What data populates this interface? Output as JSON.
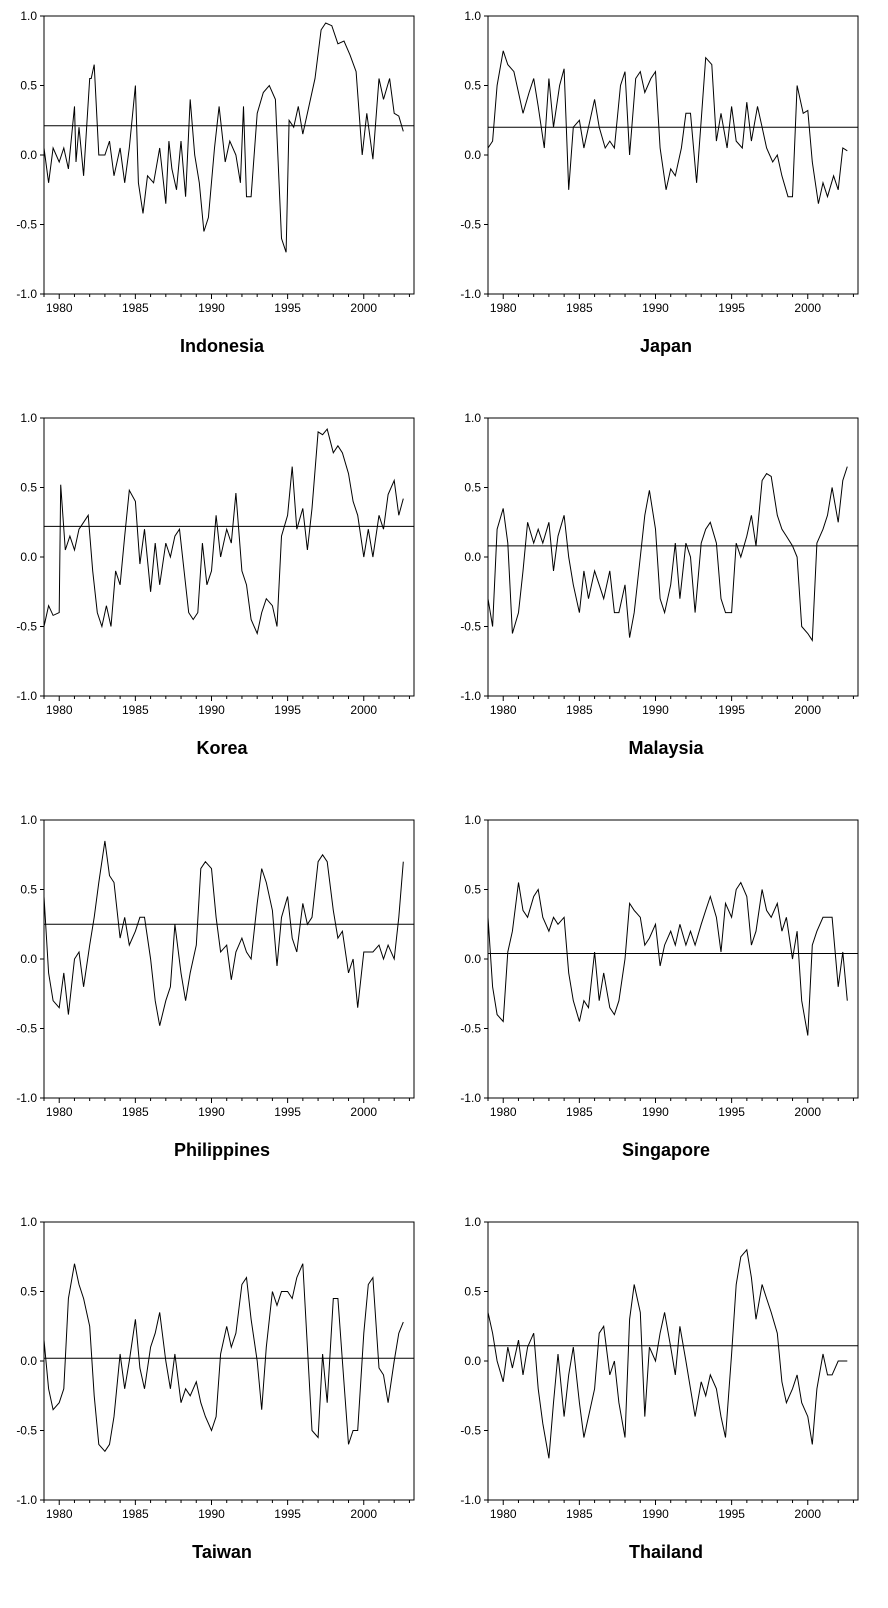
{
  "figure": {
    "xticks": [
      1980,
      1985,
      1990,
      1995,
      2000
    ],
    "yticks": [
      -1.0,
      -0.5,
      0.0,
      0.5,
      1.0
    ],
    "ytick_labels": [
      "-1.0",
      "-0.5",
      "0.0",
      "0.5",
      "1.0"
    ],
    "line_color": "#000000"
  },
  "chart_data": [
    {
      "type": "line",
      "title": "Indonesia",
      "xlim": [
        1979,
        2003.3
      ],
      "ylim": [
        -1.0,
        1.0
      ],
      "reference_line": 0.21,
      "x": [
        1979.0,
        1979.3,
        1979.6,
        1980.0,
        1980.3,
        1980.6,
        1981.0,
        1981.1,
        1981.3,
        1981.6,
        1982.0,
        1982.1,
        1982.3,
        1982.6,
        1983.0,
        1983.3,
        1983.6,
        1984.0,
        1984.3,
        1984.6,
        1985.0,
        1985.2,
        1985.5,
        1985.8,
        1986.2,
        1986.6,
        1987.0,
        1987.2,
        1987.4,
        1987.7,
        1988.0,
        1988.3,
        1988.6,
        1988.9,
        1989.2,
        1989.5,
        1989.8,
        1990.2,
        1990.5,
        1990.9,
        1991.2,
        1991.6,
        1991.9,
        1992.1,
        1992.3,
        1992.6,
        1993.0,
        1993.4,
        1993.8,
        1994.2,
        1994.6,
        1994.9,
        1995.1,
        1995.4,
        1995.7,
        1996.0,
        1996.4,
        1996.8,
        1997.2,
        1997.5,
        1997.9,
        1998.3,
        1998.7,
        1999.1,
        1999.5,
        1999.9,
        2000.2,
        2000.6,
        2001.0,
        2001.3,
        2001.7,
        2002.0,
        2002.3,
        2002.6
      ],
      "y": [
        0.05,
        -0.2,
        0.05,
        -0.05,
        0.05,
        -0.1,
        0.35,
        -0.05,
        0.2,
        -0.15,
        0.55,
        0.55,
        0.65,
        0.0,
        0.0,
        0.1,
        -0.15,
        0.05,
        -0.2,
        0.05,
        0.5,
        -0.2,
        -0.42,
        -0.15,
        -0.2,
        0.05,
        -0.35,
        0.1,
        -0.1,
        -0.25,
        0.1,
        -0.3,
        0.4,
        0.0,
        -0.2,
        -0.55,
        -0.45,
        0.05,
        0.35,
        -0.05,
        0.1,
        0.0,
        -0.2,
        0.35,
        -0.3,
        -0.3,
        0.3,
        0.45,
        0.5,
        0.4,
        -0.6,
        -0.7,
        0.25,
        0.2,
        0.35,
        0.15,
        0.35,
        0.55,
        0.9,
        0.95,
        0.93,
        0.8,
        0.82,
        0.72,
        0.6,
        0.0,
        0.3,
        -0.03,
        0.55,
        0.4,
        0.55,
        0.3,
        0.28,
        0.17
      ]
    },
    {
      "type": "line",
      "title": "Japan",
      "xlim": [
        1979,
        2003.3
      ],
      "ylim": [
        -1.0,
        1.0
      ],
      "reference_line": 0.2,
      "x": [
        1979.0,
        1979.3,
        1979.6,
        1980.0,
        1980.3,
        1980.7,
        1981.0,
        1981.3,
        1981.7,
        1982.0,
        1982.3,
        1982.7,
        1983.0,
        1983.3,
        1983.7,
        1984.0,
        1984.3,
        1984.6,
        1985.0,
        1985.3,
        1985.7,
        1986.0,
        1986.3,
        1986.7,
        1987.0,
        1987.3,
        1987.7,
        1988.0,
        1988.3,
        1988.7,
        1989.0,
        1989.3,
        1989.7,
        1990.0,
        1990.3,
        1990.7,
        1991.0,
        1991.3,
        1991.7,
        1992.0,
        1992.3,
        1992.7,
        1993.0,
        1993.3,
        1993.7,
        1994.0,
        1994.3,
        1994.7,
        1995.0,
        1995.3,
        1995.7,
        1996.0,
        1996.3,
        1996.7,
        1997.0,
        1997.3,
        1997.7,
        1998.0,
        1998.3,
        1998.7,
        1999.0,
        1999.3,
        1999.7,
        2000.0,
        2000.3,
        2000.7,
        2001.0,
        2001.3,
        2001.7,
        2002.0,
        2002.3,
        2002.6
      ],
      "y": [
        0.05,
        0.1,
        0.5,
        0.75,
        0.65,
        0.6,
        0.45,
        0.3,
        0.45,
        0.55,
        0.35,
        0.05,
        0.55,
        0.2,
        0.5,
        0.62,
        -0.25,
        0.2,
        0.25,
        0.05,
        0.25,
        0.4,
        0.2,
        0.05,
        0.1,
        0.05,
        0.5,
        0.6,
        0.0,
        0.55,
        0.6,
        0.45,
        0.55,
        0.6,
        0.05,
        -0.25,
        -0.1,
        -0.15,
        0.05,
        0.3,
        0.3,
        -0.2,
        0.25,
        0.7,
        0.65,
        0.1,
        0.3,
        0.05,
        0.35,
        0.1,
        0.05,
        0.38,
        0.1,
        0.35,
        0.2,
        0.05,
        -0.05,
        0.0,
        -0.15,
        -0.3,
        -0.3,
        0.5,
        0.3,
        0.32,
        -0.05,
        -0.35,
        -0.2,
        -0.3,
        -0.15,
        -0.25,
        0.05,
        0.03
      ]
    },
    {
      "type": "line",
      "title": "Korea",
      "xlim": [
        1979,
        2003.3
      ],
      "ylim": [
        -1.0,
        1.0
      ],
      "reference_line": 0.22,
      "x": [
        1979.0,
        1979.3,
        1979.6,
        1980.0,
        1980.1,
        1980.4,
        1980.7,
        1981.0,
        1981.3,
        1981.6,
        1981.9,
        1982.2,
        1982.5,
        1982.8,
        1983.1,
        1983.4,
        1983.7,
        1984.0,
        1984.3,
        1984.6,
        1985.0,
        1985.3,
        1985.6,
        1986.0,
        1986.3,
        1986.6,
        1987.0,
        1987.3,
        1987.6,
        1987.9,
        1988.2,
        1988.5,
        1988.8,
        1989.1,
        1989.4,
        1989.7,
        1990.0,
        1990.3,
        1990.6,
        1991.0,
        1991.3,
        1991.6,
        1992.0,
        1992.3,
        1992.6,
        1993.0,
        1993.3,
        1993.6,
        1994.0,
        1994.3,
        1994.6,
        1995.0,
        1995.3,
        1995.6,
        1996.0,
        1996.3,
        1996.6,
        1997.0,
        1997.3,
        1997.6,
        1998.0,
        1998.3,
        1998.6,
        1999.0,
        1999.3,
        1999.6,
        2000.0,
        2000.3,
        2000.6,
        2001.0,
        2001.3,
        2001.6,
        2002.0,
        2002.3,
        2002.6
      ],
      "y": [
        -0.5,
        -0.35,
        -0.42,
        -0.4,
        0.52,
        0.05,
        0.15,
        0.05,
        0.2,
        0.25,
        0.3,
        -0.1,
        -0.4,
        -0.5,
        -0.35,
        -0.5,
        -0.1,
        -0.2,
        0.15,
        0.48,
        0.4,
        -0.05,
        0.2,
        -0.25,
        0.1,
        -0.2,
        0.1,
        0.0,
        0.15,
        0.2,
        -0.1,
        -0.4,
        -0.45,
        -0.4,
        0.1,
        -0.2,
        -0.1,
        0.3,
        0.0,
        0.2,
        0.1,
        0.46,
        -0.1,
        -0.2,
        -0.45,
        -0.55,
        -0.4,
        -0.3,
        -0.35,
        -0.5,
        0.15,
        0.3,
        0.65,
        0.2,
        0.35,
        0.05,
        0.35,
        0.9,
        0.88,
        0.92,
        0.75,
        0.8,
        0.75,
        0.6,
        0.4,
        0.3,
        0.0,
        0.2,
        0.0,
        0.3,
        0.2,
        0.45,
        0.55,
        0.3,
        0.42
      ]
    },
    {
      "type": "line",
      "title": "Malaysia",
      "xlim": [
        1979,
        2003.3
      ],
      "ylim": [
        -1.0,
        1.0
      ],
      "reference_line": 0.08,
      "x": [
        1979.0,
        1979.3,
        1979.6,
        1980.0,
        1980.3,
        1980.6,
        1981.0,
        1981.3,
        1981.6,
        1982.0,
        1982.3,
        1982.6,
        1983.0,
        1983.3,
        1983.6,
        1984.0,
        1984.3,
        1984.6,
        1985.0,
        1985.3,
        1985.6,
        1986.0,
        1986.3,
        1986.6,
        1987.0,
        1987.3,
        1987.6,
        1988.0,
        1988.3,
        1988.6,
        1989.0,
        1989.3,
        1989.6,
        1990.0,
        1990.3,
        1990.6,
        1991.0,
        1991.3,
        1991.6,
        1992.0,
        1992.3,
        1992.6,
        1993.0,
        1993.3,
        1993.6,
        1994.0,
        1994.3,
        1994.6,
        1995.0,
        1995.3,
        1995.6,
        1996.0,
        1996.3,
        1996.6,
        1997.0,
        1997.3,
        1997.6,
        1998.0,
        1998.3,
        1998.6,
        1999.0,
        1999.3,
        1999.6,
        2000.0,
        2000.3,
        2000.6,
        2001.0,
        2001.3,
        2001.6,
        2002.0,
        2002.3,
        2002.6
      ],
      "y": [
        -0.3,
        -0.5,
        0.2,
        0.35,
        0.1,
        -0.55,
        -0.4,
        -0.1,
        0.25,
        0.1,
        0.2,
        0.1,
        0.25,
        -0.1,
        0.15,
        0.3,
        0.0,
        -0.2,
        -0.4,
        -0.1,
        -0.3,
        -0.1,
        -0.2,
        -0.3,
        -0.1,
        -0.4,
        -0.4,
        -0.2,
        -0.58,
        -0.4,
        0.0,
        0.3,
        0.48,
        0.2,
        -0.3,
        -0.4,
        -0.2,
        0.1,
        -0.3,
        0.1,
        0.0,
        -0.4,
        0.1,
        0.2,
        0.25,
        0.1,
        -0.3,
        -0.4,
        -0.4,
        0.1,
        0.0,
        0.15,
        0.3,
        0.08,
        0.55,
        0.6,
        0.58,
        0.3,
        0.2,
        0.15,
        0.08,
        0.0,
        -0.5,
        -0.55,
        -0.6,
        0.1,
        0.2,
        0.3,
        0.5,
        0.25,
        0.55,
        0.65
      ]
    },
    {
      "type": "line",
      "title": "Philippines",
      "xlim": [
        1979,
        2003.3
      ],
      "ylim": [
        -1.0,
        1.0
      ],
      "reference_line": 0.25,
      "x": [
        1979.0,
        1979.3,
        1979.6,
        1980.0,
        1980.3,
        1980.6,
        1981.0,
        1981.3,
        1981.6,
        1982.0,
        1982.3,
        1982.6,
        1983.0,
        1983.3,
        1983.6,
        1984.0,
        1984.3,
        1984.6,
        1985.0,
        1985.3,
        1985.6,
        1986.0,
        1986.3,
        1986.6,
        1987.0,
        1987.3,
        1987.6,
        1988.0,
        1988.3,
        1988.6,
        1989.0,
        1989.3,
        1989.6,
        1990.0,
        1990.3,
        1990.6,
        1991.0,
        1991.3,
        1991.6,
        1992.0,
        1992.3,
        1992.6,
        1993.0,
        1993.3,
        1993.6,
        1994.0,
        1994.3,
        1994.6,
        1995.0,
        1995.3,
        1995.6,
        1996.0,
        1996.3,
        1996.6,
        1997.0,
        1997.3,
        1997.6,
        1998.0,
        1998.3,
        1998.6,
        1999.0,
        1999.3,
        1999.6,
        2000.0,
        2000.3,
        2000.6,
        2001.0,
        2001.3,
        2001.6,
        2002.0,
        2002.3,
        2002.6
      ],
      "y": [
        0.45,
        -0.1,
        -0.3,
        -0.35,
        -0.1,
        -0.4,
        0.0,
        0.05,
        -0.2,
        0.1,
        0.3,
        0.55,
        0.85,
        0.6,
        0.55,
        0.15,
        0.3,
        0.1,
        0.2,
        0.3,
        0.3,
        0.0,
        -0.3,
        -0.48,
        -0.3,
        -0.2,
        0.25,
        -0.1,
        -0.3,
        -0.1,
        0.1,
        0.65,
        0.7,
        0.65,
        0.3,
        0.05,
        0.1,
        -0.15,
        0.05,
        0.15,
        0.05,
        0.0,
        0.4,
        0.65,
        0.55,
        0.35,
        -0.05,
        0.3,
        0.45,
        0.15,
        0.05,
        0.4,
        0.25,
        0.3,
        0.7,
        0.75,
        0.7,
        0.35,
        0.15,
        0.2,
        -0.1,
        0.0,
        -0.35,
        0.05,
        0.05,
        0.05,
        0.1,
        0.0,
        0.1,
        0.0,
        0.3,
        0.7
      ]
    },
    {
      "type": "line",
      "title": "Singapore",
      "xlim": [
        1979,
        2003.3
      ],
      "ylim": [
        -1.0,
        1.0
      ],
      "reference_line": 0.04,
      "x": [
        1979.0,
        1979.3,
        1979.6,
        1980.0,
        1980.3,
        1980.6,
        1981.0,
        1981.3,
        1981.6,
        1982.0,
        1982.3,
        1982.6,
        1983.0,
        1983.3,
        1983.6,
        1984.0,
        1984.3,
        1984.6,
        1985.0,
        1985.3,
        1985.6,
        1986.0,
        1986.3,
        1986.6,
        1987.0,
        1987.3,
        1987.6,
        1988.0,
        1988.3,
        1988.6,
        1989.0,
        1989.3,
        1989.6,
        1990.0,
        1990.3,
        1990.6,
        1991.0,
        1991.3,
        1991.6,
        1992.0,
        1992.3,
        1992.6,
        1993.0,
        1993.3,
        1993.6,
        1994.0,
        1994.3,
        1994.6,
        1995.0,
        1995.3,
        1995.6,
        1996.0,
        1996.3,
        1996.6,
        1997.0,
        1997.3,
        1997.6,
        1998.0,
        1998.3,
        1998.6,
        1999.0,
        1999.3,
        1999.6,
        2000.0,
        2000.3,
        2000.6,
        2001.0,
        2001.3,
        2001.6,
        2002.0,
        2002.3,
        2002.6
      ],
      "y": [
        0.3,
        -0.2,
        -0.4,
        -0.45,
        0.05,
        0.2,
        0.55,
        0.35,
        0.3,
        0.45,
        0.5,
        0.3,
        0.2,
        0.3,
        0.25,
        0.3,
        -0.1,
        -0.3,
        -0.45,
        -0.3,
        -0.35,
        0.05,
        -0.3,
        -0.1,
        -0.35,
        -0.4,
        -0.3,
        0.0,
        0.4,
        0.35,
        0.3,
        0.1,
        0.15,
        0.25,
        -0.05,
        0.1,
        0.2,
        0.1,
        0.25,
        0.1,
        0.2,
        0.1,
        0.25,
        0.35,
        0.45,
        0.3,
        0.05,
        0.4,
        0.3,
        0.5,
        0.55,
        0.45,
        0.1,
        0.2,
        0.5,
        0.35,
        0.3,
        0.4,
        0.2,
        0.3,
        0.0,
        0.2,
        -0.3,
        -0.55,
        0.1,
        0.2,
        0.3,
        0.3,
        0.3,
        -0.2,
        0.05,
        -0.3
      ]
    },
    {
      "type": "line",
      "title": "Taiwan",
      "xlim": [
        1979,
        2003.3
      ],
      "ylim": [
        -1.0,
        1.0
      ],
      "reference_line": 0.02,
      "x": [
        1979.0,
        1979.3,
        1979.6,
        1980.0,
        1980.3,
        1980.6,
        1981.0,
        1981.3,
        1981.6,
        1982.0,
        1982.3,
        1982.6,
        1983.0,
        1983.3,
        1983.6,
        1984.0,
        1984.3,
        1984.6,
        1985.0,
        1985.3,
        1985.6,
        1986.0,
        1986.3,
        1986.6,
        1987.0,
        1987.3,
        1987.6,
        1988.0,
        1988.3,
        1988.6,
        1989.0,
        1989.3,
        1989.6,
        1990.0,
        1990.3,
        1990.6,
        1991.0,
        1991.3,
        1991.6,
        1992.0,
        1992.3,
        1992.6,
        1993.0,
        1993.3,
        1993.6,
        1994.0,
        1994.3,
        1994.6,
        1995.0,
        1995.3,
        1995.6,
        1996.0,
        1996.3,
        1996.6,
        1997.0,
        1997.3,
        1997.6,
        1998.0,
        1998.3,
        1998.6,
        1999.0,
        1999.3,
        1999.6,
        2000.0,
        2000.3,
        2000.6,
        2001.0,
        2001.3,
        2001.6,
        2002.0,
        2002.3,
        2002.6
      ],
      "y": [
        0.15,
        -0.2,
        -0.35,
        -0.3,
        -0.2,
        0.45,
        0.7,
        0.55,
        0.45,
        0.25,
        -0.25,
        -0.6,
        -0.65,
        -0.6,
        -0.4,
        0.05,
        -0.2,
        0.0,
        0.3,
        -0.05,
        -0.2,
        0.1,
        0.2,
        0.35,
        0.0,
        -0.2,
        0.05,
        -0.3,
        -0.2,
        -0.25,
        -0.15,
        -0.3,
        -0.4,
        -0.5,
        -0.4,
        0.05,
        0.25,
        0.1,
        0.2,
        0.55,
        0.6,
        0.3,
        0.0,
        -0.35,
        0.1,
        0.5,
        0.4,
        0.5,
        0.5,
        0.45,
        0.6,
        0.7,
        0.1,
        -0.5,
        -0.55,
        0.05,
        -0.3,
        0.45,
        0.45,
        0.0,
        -0.6,
        -0.5,
        -0.5,
        0.2,
        0.55,
        0.6,
        -0.05,
        -0.1,
        -0.3,
        0.0,
        0.2,
        0.28
      ]
    },
    {
      "type": "line",
      "title": "Thailand",
      "xlim": [
        1979,
        2003.3
      ],
      "ylim": [
        -1.0,
        1.0
      ],
      "reference_line": 0.11,
      "x": [
        1979.0,
        1979.3,
        1979.6,
        1980.0,
        1980.3,
        1980.6,
        1981.0,
        1981.3,
        1981.6,
        1982.0,
        1982.3,
        1982.6,
        1983.0,
        1983.3,
        1983.6,
        1984.0,
        1984.3,
        1984.6,
        1985.0,
        1985.3,
        1985.6,
        1986.0,
        1986.3,
        1986.6,
        1987.0,
        1987.3,
        1987.6,
        1988.0,
        1988.3,
        1988.6,
        1989.0,
        1989.3,
        1989.6,
        1990.0,
        1990.3,
        1990.6,
        1991.0,
        1991.3,
        1991.6,
        1992.0,
        1992.3,
        1992.6,
        1993.0,
        1993.3,
        1993.6,
        1994.0,
        1994.3,
        1994.6,
        1995.0,
        1995.3,
        1995.6,
        1996.0,
        1996.3,
        1996.6,
        1997.0,
        1997.3,
        1997.6,
        1998.0,
        1998.3,
        1998.6,
        1999.0,
        1999.3,
        1999.6,
        2000.0,
        2000.3,
        2000.6,
        2001.0,
        2001.3,
        2001.6,
        2002.0,
        2002.3,
        2002.6
      ],
      "y": [
        0.35,
        0.2,
        0.0,
        -0.15,
        0.1,
        -0.05,
        0.15,
        -0.1,
        0.1,
        0.2,
        -0.2,
        -0.45,
        -0.7,
        -0.3,
        0.05,
        -0.4,
        -0.1,
        0.1,
        -0.3,
        -0.55,
        -0.4,
        -0.2,
        0.2,
        0.25,
        -0.1,
        0.0,
        -0.3,
        -0.55,
        0.3,
        0.55,
        0.35,
        -0.4,
        0.1,
        0.0,
        0.2,
        0.35,
        0.1,
        -0.1,
        0.25,
        0.0,
        -0.2,
        -0.4,
        -0.15,
        -0.25,
        -0.1,
        -0.2,
        -0.4,
        -0.55,
        0.05,
        0.55,
        0.75,
        0.8,
        0.6,
        0.3,
        0.55,
        0.45,
        0.35,
        0.2,
        -0.15,
        -0.3,
        -0.2,
        -0.1,
        -0.3,
        -0.4,
        -0.6,
        -0.2,
        0.05,
        -0.1,
        -0.1,
        0.0,
        0.0,
        0.0
      ]
    }
  ]
}
